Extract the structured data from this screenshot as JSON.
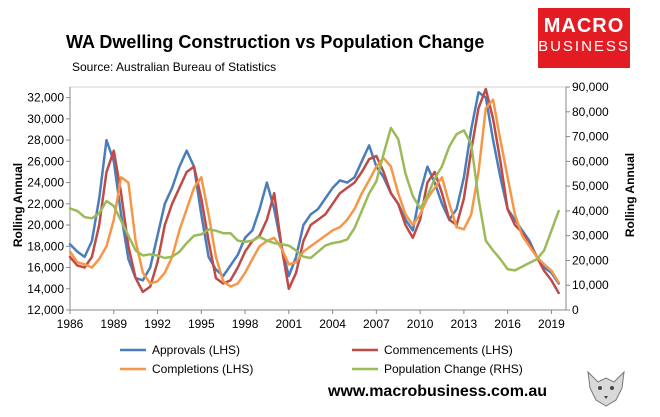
{
  "header": {
    "title": "WA Dwelling Construction vs Population Change",
    "source": "Source: Australian Bureau of Statistics"
  },
  "logo": {
    "line1": "MACRO",
    "line2": "BUSINESS",
    "color": "#e31c23"
  },
  "footer": {
    "website": "www.macrobusiness.com.au"
  },
  "chart_data": {
    "type": "line",
    "title": "WA Dwelling Construction vs Population Change",
    "ylabel_left": "Rolling Annual",
    "ylabel_right": "Rolling Annual",
    "xlim": [
      1986,
      2020
    ],
    "ylim_left": [
      12000,
      33000
    ],
    "ylim_right": [
      0,
      90000
    ],
    "x_ticks": [
      "1986",
      "1989",
      "1992",
      "1995",
      "1998",
      "2001",
      "2004",
      "2007",
      "2010",
      "2013",
      "2016",
      "2019"
    ],
    "y_ticks_left": [
      "12,000",
      "14,000",
      "16,000",
      "18,000",
      "20,000",
      "22,000",
      "24,000",
      "26,000",
      "28,000",
      "30,000",
      "32,000"
    ],
    "y_ticks_right": [
      "0",
      "10,000",
      "20,000",
      "30,000",
      "40,000",
      "50,000",
      "60,000",
      "70,000",
      "80,000",
      "90,000"
    ],
    "grid": false,
    "legend_position": "bottom",
    "series": [
      {
        "name": "Approvals (LHS)",
        "axis": "left",
        "color": "#4a7ebb",
        "x": [
          1986,
          1986.5,
          1987,
          1987.5,
          1988,
          1988.5,
          1989,
          1989.5,
          1990,
          1990.5,
          1991,
          1991.5,
          1992,
          1992.5,
          1993,
          1993.5,
          1994,
          1994.5,
          1995,
          1995.5,
          1996,
          1996.5,
          1997,
          1997.5,
          1998,
          1998.5,
          1999,
          1999.5,
          2000,
          2000.5,
          2001,
          2001.5,
          2002,
          2002.5,
          2003,
          2003.5,
          2004,
          2004.5,
          2005,
          2005.5,
          2006,
          2006.5,
          2007,
          2007.5,
          2008,
          2008.5,
          2009,
          2009.5,
          2010,
          2010.5,
          2011,
          2011.5,
          2012,
          2012.5,
          2013,
          2013.5,
          2014,
          2014.5,
          2015,
          2015.5,
          2016,
          2016.5,
          2017,
          2017.5,
          2018,
          2018.5,
          2019,
          2019.5
        ],
        "values": [
          18200,
          17500,
          17000,
          18500,
          22500,
          28000,
          26000,
          21000,
          16800,
          15000,
          14800,
          16000,
          19000,
          22000,
          23500,
          25500,
          27000,
          25500,
          21000,
          17000,
          15800,
          15200,
          16200,
          17200,
          18800,
          19500,
          21500,
          24000,
          21500,
          18000,
          15200,
          17000,
          20000,
          21000,
          21500,
          22500,
          23500,
          24200,
          24000,
          24500,
          26000,
          27500,
          25500,
          24500,
          23000,
          22000,
          20500,
          19500,
          23000,
          25500,
          24000,
          22000,
          20500,
          21500,
          24500,
          29000,
          32500,
          32000,
          28000,
          24500,
          21500,
          20500,
          19500,
          18500,
          17000,
          16000,
          15500,
          14500
        ]
      },
      {
        "name": "Commencements (LHS)",
        "axis": "left",
        "color": "#be4b48",
        "x": [
          1986,
          1986.5,
          1987,
          1987.5,
          1988,
          1988.5,
          1989,
          1989.5,
          1990,
          1990.5,
          1991,
          1991.5,
          1992,
          1992.5,
          1993,
          1993.5,
          1994,
          1994.5,
          1995,
          1995.5,
          1996,
          1996.5,
          1997,
          1997.5,
          1998,
          1998.5,
          1999,
          1999.5,
          2000,
          2000.5,
          2001,
          2001.5,
          2002,
          2002.5,
          2003,
          2003.5,
          2004,
          2004.5,
          2005,
          2005.5,
          2006,
          2006.5,
          2007,
          2007.5,
          2008,
          2008.5,
          2009,
          2009.5,
          2010,
          2010.5,
          2011,
          2011.5,
          2012,
          2012.5,
          2013,
          2013.5,
          2014,
          2014.5,
          2015,
          2015.5,
          2016,
          2016.5,
          2017,
          2017.5,
          2018,
          2018.5,
          2019,
          2019.5
        ],
        "values": [
          17000,
          16200,
          16000,
          17000,
          20000,
          25000,
          27000,
          23000,
          18000,
          15000,
          13700,
          14200,
          16500,
          20000,
          22000,
          23500,
          25000,
          25500,
          22500,
          18500,
          15000,
          14500,
          14800,
          16000,
          17500,
          18500,
          19000,
          20500,
          23000,
          18000,
          14000,
          15500,
          18500,
          20000,
          20500,
          21000,
          22000,
          23000,
          23500,
          24000,
          25000,
          26200,
          26500,
          25000,
          23000,
          22000,
          20000,
          18800,
          20500,
          24000,
          25000,
          23000,
          20500,
          20000,
          22500,
          27000,
          31000,
          32800,
          30000,
          26000,
          21500,
          20000,
          19300,
          18200,
          17000,
          15700,
          14800,
          13600
        ]
      },
      {
        "name": "Completions (LHS)",
        "axis": "left",
        "color": "#f79646",
        "x": [
          1986,
          1986.5,
          1987,
          1987.5,
          1988,
          1988.5,
          1989,
          1989.5,
          1990,
          1990.5,
          1991,
          1991.5,
          1992,
          1992.5,
          1993,
          1993.5,
          1994,
          1994.5,
          1995,
          1995.5,
          1996,
          1996.5,
          1997,
          1997.5,
          1998,
          1998.5,
          1999,
          1999.5,
          2000,
          2000.5,
          2001,
          2001.5,
          2002,
          2002.5,
          2003,
          2003.5,
          2004,
          2004.5,
          2005,
          2005.5,
          2006,
          2006.5,
          2007,
          2007.5,
          2008,
          2008.5,
          2009,
          2009.5,
          2010,
          2010.5,
          2011,
          2011.5,
          2012,
          2012.5,
          2013,
          2013.5,
          2014,
          2014.5,
          2015,
          2015.5,
          2016,
          2016.5,
          2017,
          2017.5,
          2018,
          2018.5,
          2019,
          2019.5
        ],
        "values": [
          17500,
          16500,
          16300,
          16000,
          16800,
          18000,
          20500,
          24500,
          24000,
          18500,
          15500,
          14500,
          14700,
          15500,
          17000,
          19500,
          21500,
          23500,
          24500,
          21000,
          17000,
          14700,
          14200,
          14500,
          15500,
          16800,
          18000,
          18500,
          18800,
          17800,
          16300,
          16500,
          17500,
          18000,
          18500,
          19000,
          19500,
          19800,
          20500,
          21500,
          23000,
          24200,
          25500,
          26300,
          25500,
          23000,
          21000,
          20000,
          21000,
          22500,
          23500,
          24500,
          22000,
          19800,
          19600,
          21000,
          25000,
          31000,
          31800,
          28000,
          24500,
          21000,
          19000,
          18000,
          17000,
          16300,
          15700,
          14600
        ]
      },
      {
        "name": "Population Change (RHS)",
        "axis": "right",
        "color": "#9bbb59",
        "x": [
          1986,
          1986.5,
          1987,
          1987.5,
          1988,
          1988.5,
          1989,
          1989.5,
          1990,
          1990.5,
          1991,
          1991.5,
          1992,
          1992.5,
          1993,
          1993.5,
          1994,
          1994.5,
          1995,
          1995.5,
          1996,
          1996.5,
          1997,
          1997.5,
          1998,
          1998.5,
          1999,
          1999.5,
          2000,
          2000.5,
          2001,
          2001.5,
          2002,
          2002.5,
          2003,
          2003.5,
          2004,
          2004.5,
          2005,
          2005.5,
          2006,
          2006.5,
          2007,
          2007.5,
          2008,
          2008.5,
          2009,
          2009.5,
          2010,
          2010.5,
          2011,
          2011.5,
          2012,
          2012.5,
          2013,
          2013.5,
          2014,
          2014.5,
          2015,
          2015.5,
          2016,
          2016.5,
          2017,
          2017.5,
          2018,
          2018.5,
          2019,
          2019.5
        ],
        "values": [
          41000,
          40000,
          37500,
          37000,
          39000,
          44000,
          42000,
          36000,
          30000,
          24000,
          22000,
          22500,
          22000,
          21000,
          21500,
          23500,
          27000,
          30000,
          30500,
          32500,
          32000,
          31000,
          31000,
          28000,
          27500,
          28000,
          29500,
          28000,
          27000,
          26500,
          26000,
          24000,
          21500,
          21000,
          23500,
          26000,
          27000,
          27500,
          28500,
          33000,
          40000,
          47000,
          52000,
          63000,
          73500,
          69000,
          55000,
          46000,
          41000,
          46000,
          53000,
          58000,
          66000,
          71000,
          72500,
          67000,
          45000,
          28000,
          24000,
          20500,
          16500,
          16000,
          17500,
          19000,
          20500,
          24000,
          32000,
          40000
        ]
      }
    ]
  }
}
